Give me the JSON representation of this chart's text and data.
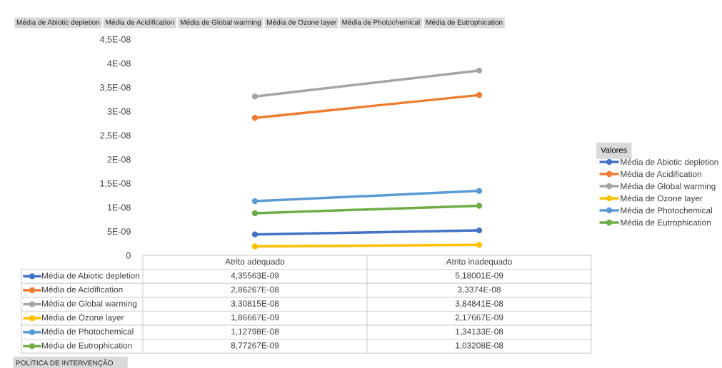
{
  "chart_data": {
    "type": "line",
    "categories": [
      "Atrito adequado",
      "Atrito inadequado"
    ],
    "series": [
      {
        "name": "Média de Abiotic depletion",
        "color": "#4472c4",
        "values": [
          4.35563e-09,
          5.18001e-09
        ],
        "value_labels": [
          "4,35563E-09",
          "5,18001E-09"
        ]
      },
      {
        "name": "Média de Acidification",
        "color": "#ed7d31",
        "values": [
          2.86267e-08,
          3.3374e-08
        ],
        "value_labels": [
          "2,86267E-08",
          "3,3374E-08"
        ]
      },
      {
        "name": "Média de Global warming",
        "color": "#a5a5a5",
        "values": [
          3.30815e-08,
          3.84841e-08
        ],
        "value_labels": [
          "3,30815E-08",
          "3,84841E-08"
        ]
      },
      {
        "name": "Média de Ozone layer",
        "color": "#ffc000",
        "values": [
          1.86667e-09,
          2.17667e-09
        ],
        "value_labels": [
          "1,86667E-09",
          "2,17667E-09"
        ]
      },
      {
        "name": "Média de Photochemical",
        "color": "#5b9bd5",
        "values": [
          1.12798e-08,
          1.34133e-08
        ],
        "value_labels": [
          "1,12798E-08",
          "1,34133E-08"
        ]
      },
      {
        "name": "Média de Eutrophication",
        "color": "#70ad47",
        "values": [
          8.77267e-09,
          1.03208e-08
        ],
        "value_labels": [
          "8,77267E-09",
          "1,03208E-08"
        ]
      }
    ],
    "ylim": [
      0,
      4.5e-08
    ],
    "yticks": [
      0,
      {
        "value": 5e-09,
        "label": "5E-09"
      },
      {
        "value": 1e-08,
        "label": "1E-08"
      },
      {
        "value": 1.5e-08,
        "label": "1,5E-08"
      },
      {
        "value": 2e-08,
        "label": "2E-08"
      },
      {
        "value": 2.5e-08,
        "label": "2,5E-08"
      },
      {
        "value": 3e-08,
        "label": "3E-08"
      },
      {
        "value": 3.5e-08,
        "label": "3,5E-08"
      },
      {
        "value": 4e-08,
        "label": "4E-08"
      },
      {
        "value": 4.5e-08,
        "label": "4,5E-08"
      }
    ],
    "legend": "right",
    "legend_title": "Valores",
    "marker": "circle",
    "line_style": "solid",
    "grid": false,
    "annotations": [
      "Média de Abiotic depletion",
      "Média de Acidification",
      "Média de Global warming",
      "Média de Ozone layer",
      "Média de Photochemical",
      "Média de Eutrophication",
      "POLÍTICA DE INTERVENÇÃO"
    ]
  }
}
